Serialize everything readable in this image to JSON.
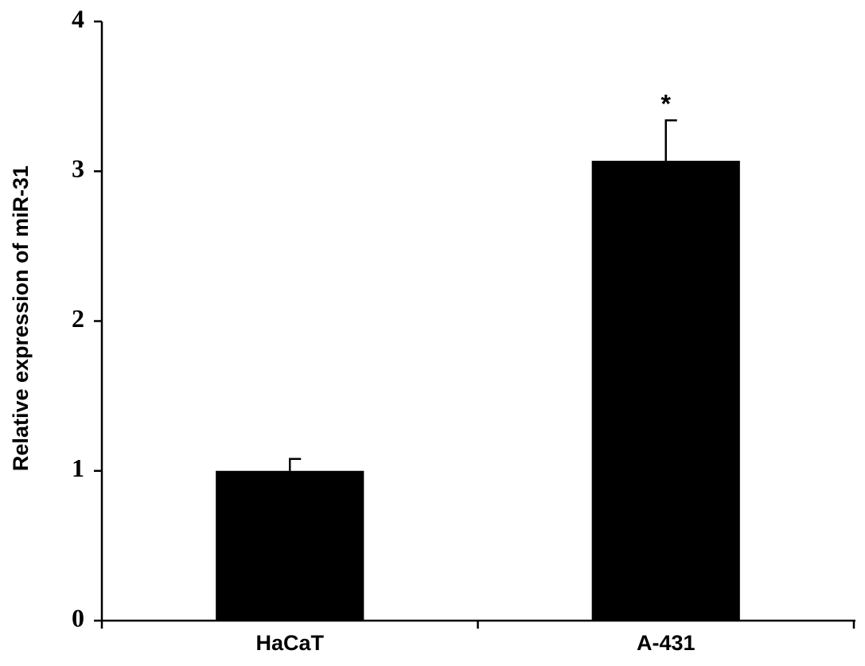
{
  "chart_data": {
    "type": "bar",
    "y_label": "Relative expression of miR-31",
    "categories": [
      "HaCaT",
      "A-431"
    ],
    "values": [
      1.0,
      3.07
    ],
    "errors": [
      0.08,
      0.27
    ],
    "annotations": [
      null,
      "*"
    ],
    "color": "#000000",
    "ylim": [
      0,
      4
    ],
    "yticks": [
      0,
      1,
      2,
      3,
      4
    ],
    "grid": false
  }
}
